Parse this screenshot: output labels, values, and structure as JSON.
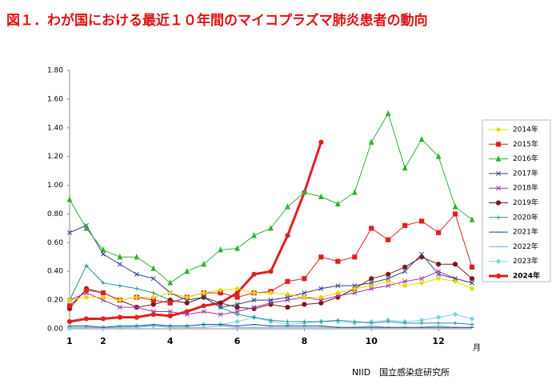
{
  "chart_data": {
    "type": "line",
    "title": "図１．わが国における最近１０年間のマイコプラズマ肺炎患者の動向",
    "x_label": "月",
    "source": "NIID　国立感染症研究所",
    "x": [
      1,
      1.5,
      2,
      2.5,
      3,
      3.5,
      4,
      4.5,
      5,
      5.5,
      6,
      6.5,
      7,
      7.5,
      8,
      8.5,
      9,
      9.5,
      10,
      10.5,
      11,
      11.5,
      12,
      12.5,
      13
    ],
    "xlim": [
      1,
      13
    ],
    "xticks": [
      1,
      2,
      4,
      6,
      8,
      10,
      12
    ],
    "ylim": [
      0,
      1.8
    ],
    "yticks": [
      {
        "value": 0,
        "label": "0.00"
      },
      {
        "value": 0.2,
        "label": "0.20"
      },
      {
        "value": 0.4,
        "label": "0.40"
      },
      {
        "value": 0.6,
        "label": "0.60"
      },
      {
        "value": 0.8,
        "label": "0.80"
      },
      {
        "value": 1.0,
        "label": "1.00"
      },
      {
        "value": 1.2,
        "label": "1.20"
      },
      {
        "value": 1.4,
        "label": "1.40"
      },
      {
        "value": 1.6,
        "label": "1.60"
      },
      {
        "value": 1.8,
        "label": "1.80"
      }
    ],
    "series": [
      {
        "name": "2014年",
        "color": "#e8d800",
        "marker": "diamond",
        "values": [
          0.2,
          0.22,
          0.22,
          0.2,
          0.22,
          0.22,
          0.25,
          0.22,
          0.25,
          0.27,
          0.28,
          0.25,
          0.25,
          0.24,
          0.22,
          0.22,
          0.25,
          0.28,
          0.3,
          0.33,
          0.3,
          0.32,
          0.35,
          0.33,
          0.28
        ]
      },
      {
        "name": "2015年",
        "color": "#e02020",
        "marker": "square",
        "values": [
          0.16,
          0.27,
          0.25,
          0.2,
          0.22,
          0.2,
          0.18,
          0.22,
          0.25,
          0.25,
          0.22,
          0.25,
          0.26,
          0.33,
          0.35,
          0.5,
          0.47,
          0.5,
          0.7,
          0.62,
          0.72,
          0.75,
          0.67,
          0.8,
          0.43
        ]
      },
      {
        "name": "2016年",
        "color": "#33b033",
        "marker": "triangle",
        "values": [
          0.9,
          0.7,
          0.55,
          0.5,
          0.5,
          0.42,
          0.32,
          0.4,
          0.45,
          0.55,
          0.56,
          0.65,
          0.7,
          0.85,
          0.95,
          0.92,
          0.87,
          0.95,
          1.3,
          1.5,
          1.12,
          1.32,
          1.2,
          0.85,
          0.76
        ]
      },
      {
        "name": "2017年",
        "color": "#304080",
        "marker": "x",
        "values": [
          0.67,
          0.72,
          0.52,
          0.45,
          0.38,
          0.35,
          0.25,
          0.2,
          0.22,
          0.15,
          0.17,
          0.2,
          0.2,
          0.22,
          0.25,
          0.28,
          0.3,
          0.3,
          0.32,
          0.35,
          0.4,
          0.52,
          0.38,
          0.35,
          0.32
        ]
      },
      {
        "name": "2018年",
        "color": "#9933aa",
        "marker": "x",
        "values": [
          0.2,
          0.25,
          0.2,
          0.15,
          0.15,
          0.12,
          0.12,
          0.1,
          0.12,
          0.1,
          0.12,
          0.15,
          0.18,
          0.2,
          0.22,
          0.2,
          0.23,
          0.25,
          0.28,
          0.3,
          0.33,
          0.35,
          0.4,
          0.35,
          0.32
        ]
      },
      {
        "name": "2019年",
        "color": "#7a1a1a",
        "marker": "circle",
        "values": [
          0.14,
          0.28,
          0.25,
          0.2,
          0.15,
          0.17,
          0.2,
          0.18,
          0.22,
          0.18,
          0.15,
          0.14,
          0.17,
          0.15,
          0.17,
          0.18,
          0.22,
          0.28,
          0.35,
          0.38,
          0.43,
          0.5,
          0.45,
          0.45,
          0.35
        ]
      },
      {
        "name": "2020年",
        "color": "#2a8f8f",
        "marker": "plus",
        "values": [
          0.2,
          0.44,
          0.32,
          0.3,
          0.28,
          0.25,
          0.2,
          0.18,
          0.22,
          0.15,
          0.1,
          0.08,
          0.06,
          0.05,
          0.05,
          0.05,
          0.06,
          0.05,
          0.04,
          0.05,
          0.04,
          0.04,
          0.04,
          0.04,
          0.03
        ]
      },
      {
        "name": "2021年",
        "color": "#1f4e8f",
        "marker": "dash",
        "values": [
          0.02,
          0.02,
          0.01,
          0.02,
          0.02,
          0.03,
          0.02,
          0.02,
          0.03,
          0.03,
          0.02,
          0.03,
          0.02,
          0.02,
          0.02,
          0.02,
          0.01,
          0.01,
          0.01,
          0.01,
          0.01,
          0.01,
          0.01,
          0.01,
          0.01
        ]
      },
      {
        "name": "2022年",
        "color": "#6ab0d0",
        "marker": "dash",
        "values": [
          0.01,
          0.01,
          0.01,
          0.01,
          0.01,
          0.02,
          0.01,
          0.01,
          0.01,
          0.02,
          0.01,
          0.01,
          0.01,
          0.01,
          0.01,
          0.01,
          0.01,
          0.01,
          0.02,
          0.01,
          0.01,
          0.01,
          0.02,
          0.01,
          0.01
        ]
      },
      {
        "name": "2023年",
        "color": "#7dd4e8",
        "marker": "diamond",
        "values": [
          0.01,
          0.01,
          0.01,
          0.01,
          0.02,
          0.02,
          0.02,
          0.02,
          0.03,
          0.03,
          0.05,
          0.08,
          0.05,
          0.03,
          0.04,
          0.05,
          0.05,
          0.04,
          0.05,
          0.06,
          0.05,
          0.06,
          0.08,
          0.1,
          0.07
        ]
      },
      {
        "name": "2024年",
        "color": "#e02020",
        "marker": "circle",
        "width": 3,
        "values": [
          0.05,
          0.07,
          0.07,
          0.08,
          0.08,
          0.1,
          0.09,
          0.12,
          0.16,
          0.18,
          0.25,
          0.38,
          0.4,
          0.65,
          0.95,
          1.3,
          null,
          null,
          null,
          null,
          null,
          null,
          null,
          null,
          null
        ]
      }
    ]
  }
}
